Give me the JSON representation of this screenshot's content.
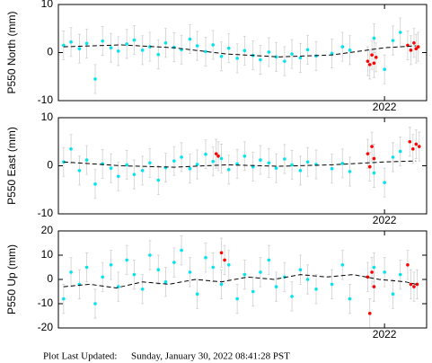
{
  "chart_data": [
    {
      "type": "scatter",
      "ylabel": "P550 North (mm)",
      "xlim": [
        2018.9,
        2022.4
      ],
      "xticks": [
        2022
      ],
      "ylim": [
        -10,
        10
      ],
      "yticks": [
        -10,
        0,
        10
      ],
      "error_color": "#d0d0d0",
      "series": [
        {
          "mode": "markers",
          "color": "#00e5ee",
          "error": 3,
          "x": [
            2018.95,
            2019.02,
            2019.1,
            2019.17,
            2019.25,
            2019.32,
            2019.4,
            2019.47,
            2019.55,
            2019.62,
            2019.7,
            2019.77,
            2019.85,
            2019.92,
            2020.0,
            2020.07,
            2020.15,
            2020.22,
            2020.3,
            2020.37,
            2020.45,
            2020.52,
            2020.6,
            2020.67,
            2020.75,
            2020.82,
            2020.9,
            2020.97,
            2021.05,
            2021.12,
            2021.2,
            2021.27,
            2021.35,
            2021.5,
            2021.6,
            2021.67,
            2021.9,
            2022.0,
            2022.08,
            2022.15
          ],
          "values": [
            1.5,
            2.2,
            0.8,
            1.9,
            -5.5,
            2.4,
            1.0,
            0.3,
            1.8,
            2.6,
            0.5,
            1.2,
            -0.4,
            2.0,
            1.1,
            0.6,
            2.8,
            1.4,
            0.2,
            1.6,
            -0.8,
            0.9,
            -1.2,
            0.4,
            -0.6,
            -1.5,
            0.1,
            -0.9,
            -1.8,
            -0.3,
            -1.1,
            0.6,
            -0.7,
            -0.2,
            1.2,
            0.5,
            3.0,
            -3.5,
            2.5,
            4.2
          ]
        },
        {
          "mode": "markers",
          "color": "#ff0000",
          "error": 3,
          "x": [
            2021.84,
            2021.86,
            2021.88,
            2021.9,
            2021.92,
            2022.22,
            2022.25,
            2022.28,
            2022.3,
            2022.32
          ],
          "values": [
            -1.8,
            -2.5,
            -0.5,
            -2.2,
            -1.0,
            1.5,
            0.5,
            2.0,
            0.8,
            1.2
          ]
        },
        {
          "mode": "dashed",
          "color": "#000000",
          "x": [
            2018.95,
            2019.5,
            2020.0,
            2020.5,
            2021.0,
            2021.5,
            2022.0,
            2022.3
          ],
          "values": [
            1.2,
            1.6,
            1.0,
            -0.3,
            -0.9,
            -0.5,
            1.0,
            1.4
          ]
        }
      ]
    },
    {
      "type": "scatter",
      "ylabel": "P550 East (mm)",
      "xlim": [
        2018.9,
        2022.4
      ],
      "xticks": [
        2022
      ],
      "ylim": [
        -10,
        10
      ],
      "yticks": [
        -10,
        0,
        10
      ],
      "error_color": "#d0d0d0",
      "series": [
        {
          "mode": "markers",
          "color": "#00e5ee",
          "error": 3,
          "x": [
            2018.95,
            2019.02,
            2019.1,
            2019.17,
            2019.25,
            2019.32,
            2019.4,
            2019.47,
            2019.55,
            2019.62,
            2019.7,
            2019.77,
            2019.85,
            2019.92,
            2020.0,
            2020.07,
            2020.15,
            2020.22,
            2020.3,
            2020.37,
            2020.45,
            2020.52,
            2020.6,
            2020.67,
            2020.75,
            2020.82,
            2020.9,
            2020.97,
            2021.05,
            2021.12,
            2021.2,
            2021.27,
            2021.35,
            2021.5,
            2021.6,
            2021.67,
            2021.9,
            2022.0,
            2022.08,
            2022.15
          ],
          "values": [
            0.8,
            3.5,
            -1.0,
            1.2,
            -3.8,
            0.4,
            -0.5,
            -2.2,
            0.2,
            -1.8,
            -1.0,
            0.6,
            -3.0,
            -0.4,
            1.0,
            1.8,
            -0.6,
            0.3,
            2.4,
            0.9,
            1.5,
            -0.8,
            0.4,
            2.0,
            -0.2,
            1.2,
            0.6,
            -0.5,
            1.4,
            0.2,
            -1.0,
            0.8,
            0.3,
            -0.6,
            0.5,
            -1.2,
            -1.5,
            -3.5,
            1.8,
            3.0
          ]
        },
        {
          "mode": "markers",
          "color": "#ff0000",
          "error": 3,
          "x": [
            2020.4,
            2020.42,
            2021.84,
            2021.86,
            2021.88,
            2021.9,
            2022.24,
            2022.27,
            2022.3,
            2022.33
          ],
          "values": [
            2.5,
            2.0,
            2.5,
            -0.2,
            4.0,
            1.5,
            5.0,
            3.5,
            4.5,
            4.0
          ]
        },
        {
          "mode": "dashed",
          "color": "#000000",
          "x": [
            2018.95,
            2019.5,
            2020.0,
            2020.5,
            2021.0,
            2021.5,
            2022.0,
            2022.3
          ],
          "values": [
            0.8,
            0.0,
            -0.3,
            0.2,
            -0.1,
            0.2,
            0.8,
            1.0
          ]
        }
      ]
    },
    {
      "type": "scatter",
      "ylabel": "P550 Up (mm)",
      "xlim": [
        2018.9,
        2022.4
      ],
      "xticks": [
        2022
      ],
      "ylim": [
        -20,
        20
      ],
      "yticks": [
        -20,
        -10,
        0,
        10,
        20
      ],
      "error_color": "#d0d0d0",
      "series": [
        {
          "mode": "markers",
          "color": "#00e5ee",
          "error": 6,
          "x": [
            2018.95,
            2019.02,
            2019.1,
            2019.17,
            2019.25,
            2019.32,
            2019.4,
            2019.47,
            2019.55,
            2019.62,
            2019.7,
            2019.77,
            2019.85,
            2019.92,
            2020.0,
            2020.07,
            2020.15,
            2020.22,
            2020.3,
            2020.37,
            2020.45,
            2020.52,
            2020.6,
            2020.67,
            2020.75,
            2020.82,
            2020.9,
            2020.97,
            2021.05,
            2021.12,
            2021.2,
            2021.27,
            2021.35,
            2021.5,
            2021.6,
            2021.67,
            2021.9,
            2022.0,
            2022.08,
            2022.15
          ],
          "values": [
            -8,
            3,
            -2,
            5,
            -10,
            1,
            6,
            -3,
            8,
            2,
            -4,
            10,
            4,
            -1,
            7,
            12,
            3,
            -6,
            9,
            5,
            -2,
            6,
            -8,
            2,
            -5,
            3,
            8,
            -3,
            1,
            -7,
            4,
            0,
            -4,
            -2,
            6,
            -8,
            5,
            3,
            -6,
            2
          ]
        },
        {
          "mode": "markers",
          "color": "#ff0000",
          "error": 6,
          "x": [
            2020.45,
            2020.48,
            2021.84,
            2021.86,
            2021.88,
            2021.9,
            2022.22,
            2022.25,
            2022.28,
            2022.31
          ],
          "values": [
            11,
            8,
            1,
            -14,
            3,
            -3,
            6,
            -2,
            -3,
            -2
          ]
        },
        {
          "mode": "dashed",
          "color": "#000000",
          "x": [
            2018.95,
            2019.2,
            2019.45,
            2019.7,
            2019.95,
            2020.2,
            2020.45,
            2020.7,
            2020.95,
            2021.2,
            2021.45,
            2021.7,
            2021.95,
            2022.2,
            2022.3
          ],
          "values": [
            -3,
            -2,
            -3.5,
            -1,
            -2,
            0,
            -1,
            1,
            0,
            2,
            1,
            2,
            0,
            -1,
            -2
          ]
        }
      ]
    }
  ],
  "footer": {
    "label": "Plot Last Updated:",
    "timestamp": "Sunday, January 30, 2022 08:41:28 PST"
  }
}
